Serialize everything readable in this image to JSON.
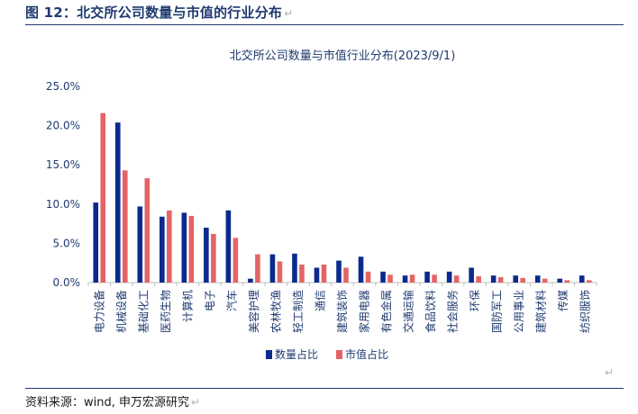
{
  "figure": {
    "label": "图 12：北交所公司数量与市值的行业分布",
    "source": "资料来源：wind, 申万宏源研究"
  },
  "colors": {
    "count_series": "#0a2a8c",
    "value_series": "#e46466",
    "text": "#1f3a6f",
    "rule": "#1f3a6f"
  },
  "chart_data": {
    "type": "bar",
    "title": "北交所公司数量与市值行业分布(2023/9/1)",
    "xlabel": "",
    "ylabel": "",
    "ylim": [
      0,
      25
    ],
    "yticks": [
      "0.0%",
      "5.0%",
      "10.0%",
      "15.0%",
      "20.0%",
      "25.0%"
    ],
    "grid": false,
    "legend_position": "bottom",
    "categories": [
      "电力设备",
      "机械设备",
      "基础化工",
      "医药生物",
      "计算机",
      "电子",
      "汽车",
      "美容护理",
      "农林牧渔",
      "轻工制造",
      "通信",
      "建筑装饰",
      "家用电器",
      "有色金属",
      "交通运输",
      "食品饮料",
      "社会服务",
      "环保",
      "国防军工",
      "公用事业",
      "建筑材料",
      "传媒",
      "纺织服饰"
    ],
    "series": [
      {
        "name": "数量占比",
        "values": [
          10.2,
          20.4,
          9.7,
          8.4,
          8.9,
          7.0,
          9.2,
          0.5,
          3.6,
          3.7,
          1.9,
          2.8,
          3.3,
          1.4,
          0.9,
          1.4,
          1.4,
          1.9,
          0.9,
          0.9,
          0.9,
          0.5,
          0.9
        ]
      },
      {
        "name": "市值占比",
        "values": [
          21.6,
          14.3,
          13.3,
          9.2,
          8.5,
          6.2,
          5.7,
          3.6,
          2.7,
          2.3,
          2.3,
          1.9,
          1.4,
          1.0,
          1.0,
          1.0,
          0.9,
          0.8,
          0.7,
          0.6,
          0.5,
          0.3,
          0.3
        ]
      }
    ]
  }
}
